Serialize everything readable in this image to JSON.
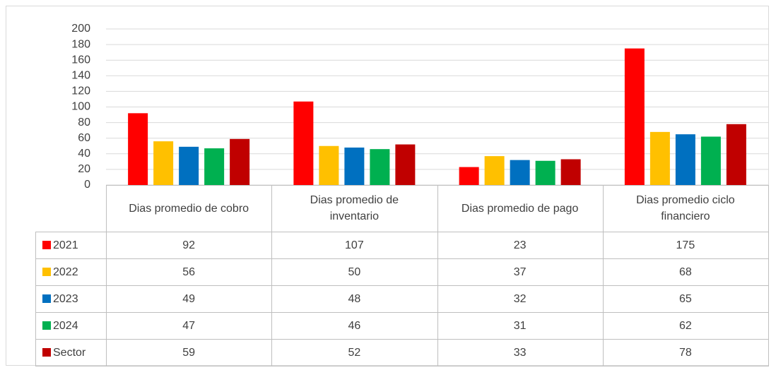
{
  "chart_data": {
    "type": "bar",
    "categories": [
      "Dias promedio de cobro",
      "Dias promedio de inventario",
      "Dias promedio de pago",
      "Dias promedio ciclo financiero"
    ],
    "series": [
      {
        "name": "2021",
        "color": "#ff0000",
        "values": [
          92,
          107,
          23,
          175
        ]
      },
      {
        "name": "2022",
        "color": "#ffc000",
        "values": [
          56,
          50,
          37,
          68
        ]
      },
      {
        "name": "2023",
        "color": "#0070c0",
        "values": [
          49,
          48,
          32,
          65
        ]
      },
      {
        "name": "2024",
        "color": "#00b050",
        "values": [
          47,
          46,
          31,
          62
        ]
      },
      {
        "name": "Sector",
        "color": "#c00000",
        "values": [
          59,
          52,
          33,
          78
        ]
      }
    ],
    "ylim": [
      0,
      200
    ],
    "yticks": [
      0,
      20,
      40,
      60,
      80,
      100,
      120,
      140,
      160,
      180,
      200
    ],
    "grid": true
  }
}
